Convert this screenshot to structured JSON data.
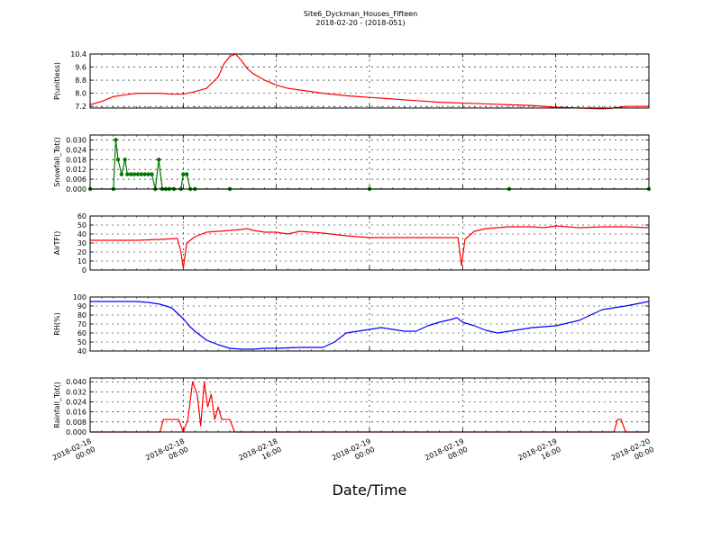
{
  "figure": {
    "title": "Site6_Dyckman_Houses_Fifteen",
    "subtitle": "2018-02-20 - (2018-051)",
    "xlabel": "Date/Time",
    "x_ticks": [
      {
        "l1": "2018-02-18",
        "l2": "00:00"
      },
      {
        "l1": "2018-02-18",
        "l2": "08:00"
      },
      {
        "l1": "2018-02-18",
        "l2": "16:00"
      },
      {
        "l1": "2018-02-19",
        "l2": "00:00"
      },
      {
        "l1": "2018-02-19",
        "l2": "08:00"
      },
      {
        "l1": "2018-02-19",
        "l2": "16:00"
      },
      {
        "l1": "2018-02-20",
        "l2": "00:00"
      }
    ]
  },
  "chart_data": [
    {
      "type": "line",
      "ylabel": "P(unitless)",
      "ylim": [
        7.1,
        10.4
      ],
      "yticks": [
        7.2,
        8.0,
        8.8,
        9.6,
        10.4
      ],
      "yticklabels": [
        "7.2",
        "8.0",
        "8.8",
        "9.6",
        "10.4"
      ],
      "grid": true,
      "xlim_hours": [
        0,
        48
      ],
      "series": [
        {
          "color": "#ff0000",
          "markers": false,
          "step": false,
          "x": [
            0,
            1,
            2,
            3,
            4,
            5,
            6,
            7,
            8,
            9,
            10,
            11,
            11.5,
            12,
            12.5,
            13,
            13.5,
            14,
            15,
            16,
            17,
            18,
            20,
            22,
            24,
            26,
            28,
            30,
            32,
            34,
            36,
            38,
            40,
            42,
            44,
            45,
            46,
            47,
            48
          ],
          "y": [
            7.3,
            7.5,
            7.8,
            7.9,
            8.0,
            8.0,
            8.0,
            7.95,
            7.95,
            8.1,
            8.3,
            9.0,
            9.8,
            10.25,
            10.4,
            10.0,
            9.5,
            9.2,
            8.8,
            8.5,
            8.3,
            8.2,
            8.0,
            7.85,
            7.75,
            7.65,
            7.55,
            7.45,
            7.4,
            7.35,
            7.3,
            7.25,
            7.15,
            7.1,
            7.05,
            7.1,
            7.2,
            7.2,
            7.2
          ]
        }
      ]
    },
    {
      "type": "line",
      "ylabel": "Snowfall_Tot()",
      "ylim": [
        0,
        0.033
      ],
      "yticks": [
        0.0,
        0.006,
        0.012,
        0.018,
        0.024,
        0.03
      ],
      "yticklabels": [
        "0.000",
        "0.006",
        "0.012",
        "0.018",
        "0.024",
        "0.030"
      ],
      "grid": true,
      "xlim_hours": [
        0,
        48
      ],
      "series": [
        {
          "color": "#007700",
          "markers": true,
          "step": false,
          "x": [
            0,
            2,
            2.2,
            2.4,
            2.7,
            3.0,
            3.2,
            3.5,
            3.8,
            4.1,
            4.4,
            4.7,
            5.0,
            5.3,
            5.6,
            5.9,
            6.2,
            6.5,
            6.8,
            7.2,
            7.8,
            8.0,
            8.3,
            8.6,
            9.0,
            12,
            24,
            36,
            48
          ],
          "y": [
            0,
            0,
            0.03,
            0.018,
            0.009,
            0.018,
            0.009,
            0.009,
            0.009,
            0.009,
            0.009,
            0.009,
            0.009,
            0.009,
            0,
            0.018,
            0,
            0,
            0,
            0,
            0,
            0.009,
            0.009,
            0,
            0,
            0,
            0,
            0,
            0
          ]
        }
      ]
    },
    {
      "type": "line",
      "ylabel": "AirTF()",
      "ylim": [
        0,
        60
      ],
      "yticks": [
        0,
        10,
        20,
        30,
        40,
        50,
        60
      ],
      "yticklabels": [
        "0",
        "10",
        "20",
        "30",
        "40",
        "50",
        "60"
      ],
      "grid": true,
      "xlim_hours": [
        0,
        48
      ],
      "series": [
        {
          "color": "#ff0000",
          "markers": false,
          "step": false,
          "x": [
            0,
            2,
            4,
            6,
            7.5,
            7.8,
            8.0,
            8.3,
            9,
            10,
            11,
            12,
            13,
            13.5,
            14,
            15,
            16,
            17,
            18,
            20,
            22,
            24,
            26,
            28,
            30,
            31.6,
            31.9,
            32.2,
            33,
            34,
            36,
            38,
            39,
            40,
            42,
            44,
            46,
            48
          ],
          "y": [
            33,
            33,
            33,
            34,
            35,
            20,
            2,
            30,
            37,
            42,
            43,
            44,
            45,
            46,
            44,
            42,
            42,
            40,
            43,
            41,
            38,
            36,
            36,
            36,
            36,
            36,
            5,
            34,
            43,
            46,
            48,
            48,
            47,
            49,
            47,
            48,
            48,
            47
          ]
        }
      ]
    },
    {
      "type": "line",
      "ylabel": "RH(%)",
      "ylim": [
        40,
        100
      ],
      "yticks": [
        40,
        50,
        60,
        70,
        80,
        90,
        100
      ],
      "yticklabels": [
        "40",
        "50",
        "60",
        "70",
        "80",
        "90",
        "100"
      ],
      "grid": true,
      "xlim_hours": [
        0,
        48
      ],
      "series": [
        {
          "color": "#0000ff",
          "markers": false,
          "step": false,
          "x": [
            0,
            2,
            4,
            5,
            6,
            7,
            7.5,
            8,
            8.5,
            9,
            10,
            11,
            12,
            13,
            14,
            15,
            16,
            18,
            20,
            21,
            22,
            23,
            24,
            25,
            26,
            27,
            28,
            29,
            30,
            31,
            31.5,
            32,
            33,
            34,
            35,
            36,
            38,
            40,
            42,
            43,
            44,
            45,
            46,
            48
          ],
          "y": [
            95,
            95,
            95,
            94,
            92,
            88,
            82,
            76,
            68,
            62,
            52,
            47,
            43,
            42,
            42,
            43,
            43,
            44,
            44,
            50,
            60,
            62,
            64,
            66,
            64,
            62,
            62,
            68,
            72,
            75,
            77,
            72,
            68,
            63,
            60,
            62,
            66,
            68,
            74,
            80,
            86,
            88,
            90,
            95
          ]
        }
      ]
    },
    {
      "type": "line",
      "ylabel": "Rainfall_Tot()",
      "ylim": [
        0,
        0.043
      ],
      "yticks": [
        0.0,
        0.008,
        0.016,
        0.024,
        0.032,
        0.04
      ],
      "yticklabels": [
        "0.000",
        "0.008",
        "0.016",
        "0.024",
        "0.032",
        "0.040"
      ],
      "grid": true,
      "xlim_hours": [
        0,
        48
      ],
      "series": [
        {
          "color": "#ff0000",
          "markers": false,
          "step": false,
          "x": [
            0,
            6,
            6.3,
            7.6,
            8.0,
            8.4,
            8.8,
            9.2,
            9.5,
            9.8,
            10.1,
            10.4,
            10.7,
            11.0,
            11.3,
            11.6,
            12.0,
            12.4,
            13,
            24,
            36,
            45,
            45.3,
            45.6,
            46,
            48
          ],
          "y": [
            0,
            0,
            0.01,
            0.01,
            0,
            0.01,
            0.04,
            0.03,
            0.005,
            0.04,
            0.02,
            0.03,
            0.01,
            0.02,
            0.01,
            0.01,
            0.01,
            0,
            0,
            0,
            0,
            0,
            0.01,
            0.01,
            0,
            0
          ]
        }
      ]
    }
  ]
}
